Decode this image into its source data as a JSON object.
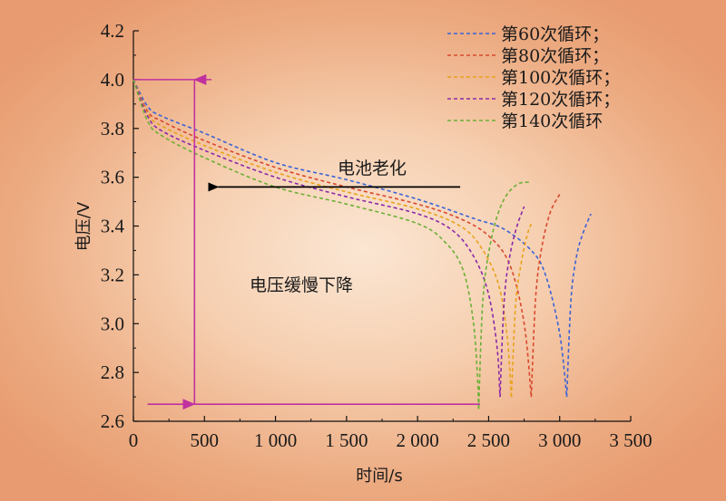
{
  "chart_data": {
    "type": "line",
    "title": "",
    "xlabel": "时间/s",
    "ylabel": "电压/V",
    "xlim": [
      0,
      3500
    ],
    "ylim": [
      2.6,
      4.2
    ],
    "x_ticks": [
      0,
      500,
      1000,
      1500,
      2000,
      2500,
      3000,
      3500
    ],
    "x_tick_labels": [
      "0",
      "500",
      "1 000",
      "1 500",
      "2 000",
      "2 500",
      "3 000",
      "3 500"
    ],
    "y_ticks": [
      2.6,
      2.8,
      3.0,
      3.2,
      3.4,
      3.6,
      3.8,
      4.0,
      4.2
    ],
    "y_tick_labels": [
      "2.6",
      "2.8",
      "3.0",
      "3.2",
      "3.4",
      "3.6",
      "3.8",
      "4.0",
      "4.2"
    ],
    "legend_position": "top-right",
    "series": [
      {
        "name": "第60次循环；",
        "color": "#3b63d6",
        "discharge": [
          [
            0,
            4.0
          ],
          [
            100,
            3.89
          ],
          [
            200,
            3.85
          ],
          [
            500,
            3.78
          ],
          [
            1000,
            3.66
          ],
          [
            1500,
            3.59
          ],
          [
            2000,
            3.51
          ],
          [
            2400,
            3.43
          ],
          [
            2600,
            3.39
          ],
          [
            2800,
            3.3
          ],
          [
            2900,
            3.2
          ],
          [
            3000,
            2.96
          ],
          [
            3050,
            2.7
          ]
        ],
        "recovery": [
          [
            3050,
            2.7
          ],
          [
            3080,
            3.1
          ],
          [
            3120,
            3.28
          ],
          [
            3170,
            3.38
          ],
          [
            3220,
            3.45
          ]
        ]
      },
      {
        "name": "第80次循环；",
        "color": "#d8482e",
        "discharge": [
          [
            0,
            4.0
          ],
          [
            100,
            3.87
          ],
          [
            200,
            3.83
          ],
          [
            500,
            3.75
          ],
          [
            1000,
            3.64
          ],
          [
            1500,
            3.56
          ],
          [
            2000,
            3.49
          ],
          [
            2300,
            3.43
          ],
          [
            2500,
            3.36
          ],
          [
            2650,
            3.24
          ],
          [
            2750,
            3.0
          ],
          [
            2800,
            2.7
          ]
        ],
        "recovery": [
          [
            2800,
            2.7
          ],
          [
            2830,
            3.1
          ],
          [
            2870,
            3.3
          ],
          [
            2930,
            3.45
          ],
          [
            3000,
            3.53
          ]
        ]
      },
      {
        "name": "第100次循环；",
        "color": "#e8a21a",
        "discharge": [
          [
            0,
            4.0
          ],
          [
            100,
            3.86
          ],
          [
            200,
            3.81
          ],
          [
            500,
            3.73
          ],
          [
            1000,
            3.62
          ],
          [
            1500,
            3.54
          ],
          [
            2000,
            3.47
          ],
          [
            2300,
            3.4
          ],
          [
            2450,
            3.31
          ],
          [
            2570,
            3.16
          ],
          [
            2630,
            2.95
          ],
          [
            2660,
            2.7
          ]
        ],
        "recovery": [
          [
            2660,
            2.7
          ],
          [
            2690,
            3.08
          ],
          [
            2730,
            3.25
          ],
          [
            2770,
            3.36
          ],
          [
            2800,
            3.41
          ]
        ]
      },
      {
        "name": "第120次循环；",
        "color": "#8a2aa8",
        "discharge": [
          [
            0,
            4.0
          ],
          [
            100,
            3.85
          ],
          [
            200,
            3.79
          ],
          [
            500,
            3.71
          ],
          [
            1000,
            3.6
          ],
          [
            1500,
            3.52
          ],
          [
            2000,
            3.45
          ],
          [
            2250,
            3.38
          ],
          [
            2400,
            3.27
          ],
          [
            2500,
            3.12
          ],
          [
            2560,
            2.9
          ],
          [
            2580,
            2.7
          ]
        ],
        "recovery": [
          [
            2580,
            2.7
          ],
          [
            2610,
            3.1
          ],
          [
            2650,
            3.28
          ],
          [
            2700,
            3.4
          ],
          [
            2750,
            3.48
          ]
        ]
      },
      {
        "name": "第140次循环",
        "color": "#6bb036",
        "discharge": [
          [
            0,
            4.0
          ],
          [
            100,
            3.83
          ],
          [
            200,
            3.77
          ],
          [
            500,
            3.68
          ],
          [
            1000,
            3.56
          ],
          [
            1500,
            3.49
          ],
          [
            2000,
            3.41
          ],
          [
            2200,
            3.33
          ],
          [
            2320,
            3.22
          ],
          [
            2390,
            3.02
          ],
          [
            2420,
            2.8
          ],
          [
            2430,
            2.65
          ]
        ],
        "recovery": [
          [
            2430,
            2.65
          ],
          [
            2460,
            3.1
          ],
          [
            2520,
            3.35
          ],
          [
            2600,
            3.5
          ],
          [
            2700,
            3.57
          ],
          [
            2800,
            3.58
          ]
        ]
      }
    ],
    "annotations": {
      "aging_label": "电池老化",
      "voltage_drop_label": "电压缓慢下降",
      "colors": {
        "annotation_lines": "#c0319f",
        "arrow": "#000000"
      },
      "aging_arrow": {
        "from": [
          2300,
          3.56
        ],
        "to": [
          520,
          3.56
        ]
      },
      "upper_hline": {
        "x": [
          0,
          550
        ],
        "y": 4.0
      },
      "lower_hline": {
        "x": [
          100,
          2440
        ],
        "y": 2.67
      },
      "voltage_arrow": {
        "x": 430,
        "y_top": 4.0,
        "y_bottom": 2.67
      }
    }
  }
}
